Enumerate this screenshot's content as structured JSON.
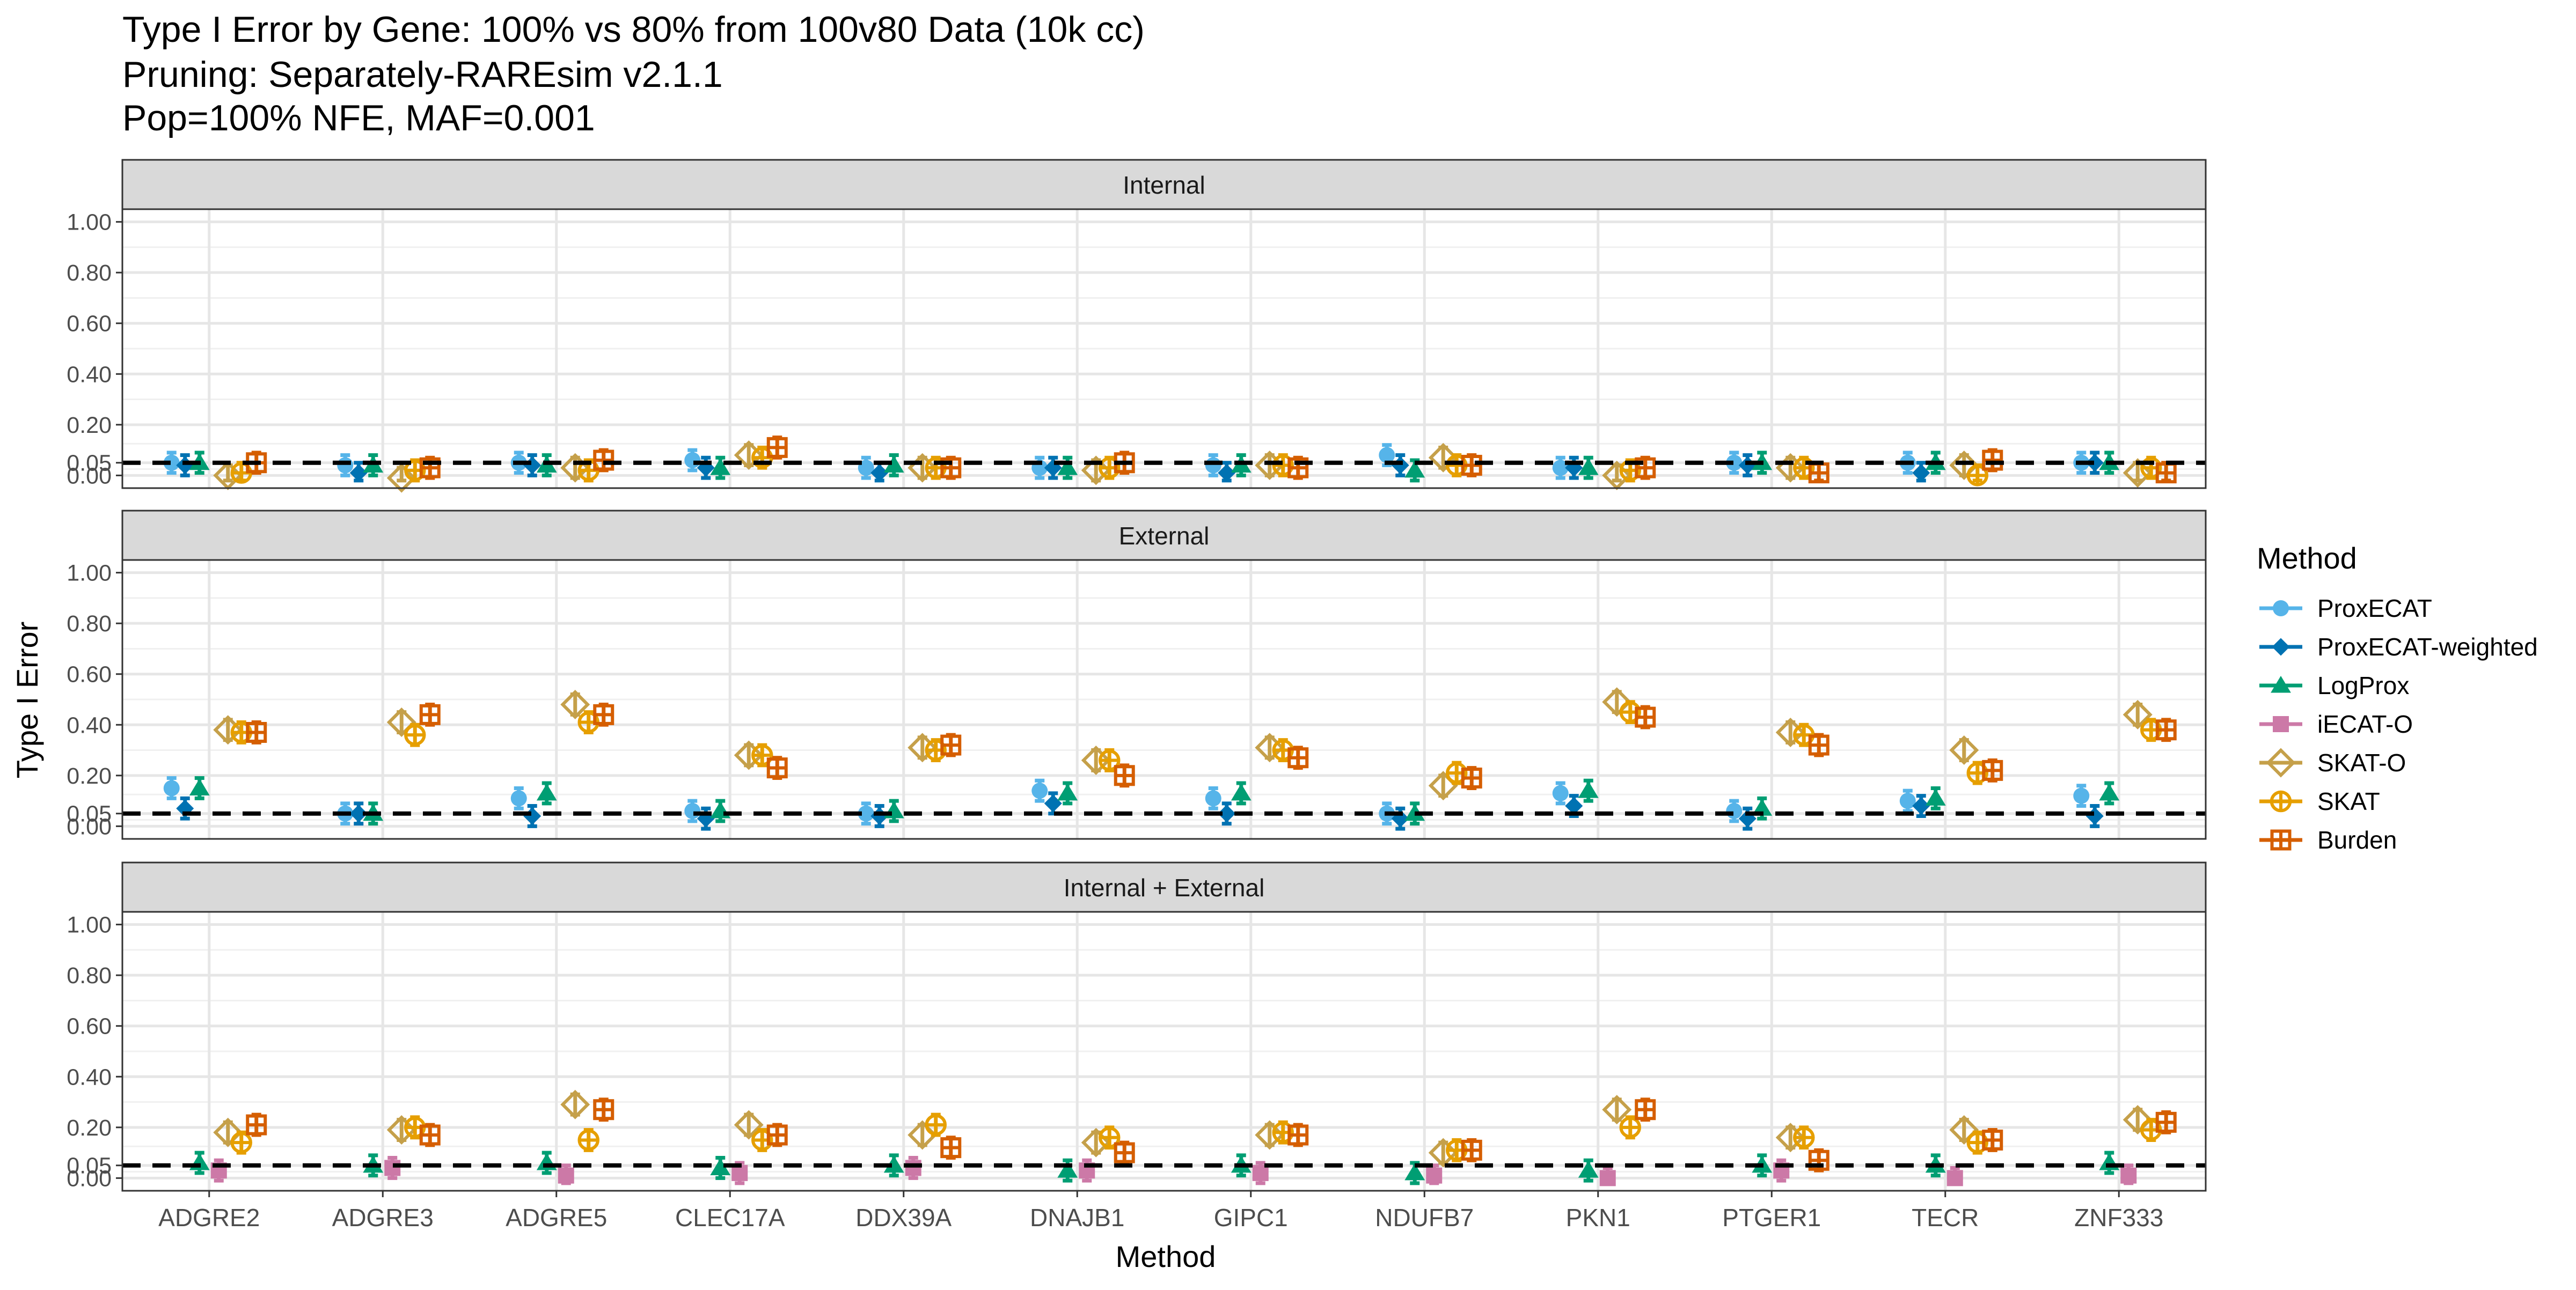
{
  "chart_data": {
    "type": "scatter",
    "title_lines": [
      "Type I Error by Gene: 100% vs 80% from 100v80 Data (10k cc)",
      "Pruning: Separately-RAREsim v2.1.1",
      "Pop=100% NFE, MAF=0.001"
    ],
    "xlabel": "Method",
    "ylabel": "Type I Error",
    "ylim": [
      -0.05,
      1.05
    ],
    "yticks": [
      0.0,
      0.05,
      0.2,
      0.4,
      0.6,
      0.8,
      1.0
    ],
    "ytick_labels": [
      "0.00",
      "0.05",
      "0.20",
      "0.40",
      "0.60",
      "0.80",
      "1.00"
    ],
    "reference_line": 0.05,
    "categories": [
      "ADGRE2",
      "ADGRE3",
      "ADGRE5",
      "CLEC17A",
      "DDX39A",
      "DNAJB1",
      "GIPC1",
      "NDUFB7",
      "PKN1",
      "PTGER1",
      "TECR",
      "ZNF333"
    ],
    "legend": {
      "title": "Method",
      "placement": "right",
      "entries": [
        {
          "name": "ProxECAT",
          "color": "#56B4E9",
          "shape": "circle"
        },
        {
          "name": "ProxECAT-weighted",
          "color": "#0072B2",
          "shape": "diamond"
        },
        {
          "name": "LogProx",
          "color": "#009E73",
          "shape": "triangle"
        },
        {
          "name": "iECAT-O",
          "color": "#CC79A7",
          "shape": "square"
        },
        {
          "name": "SKAT-O",
          "color": "#C5A04A",
          "shape": "diamond-open"
        },
        {
          "name": "SKAT",
          "color": "#E69F00",
          "shape": "circle-plus"
        },
        {
          "name": "Burden",
          "color": "#D55E00",
          "shape": "square-plus"
        }
      ]
    },
    "ci_halfwidth": 0.04,
    "panels": [
      {
        "label": "Internal",
        "series": [
          {
            "name": "ProxECAT",
            "values": [
              0.05,
              0.04,
              0.05,
              0.06,
              0.03,
              0.03,
              0.04,
              0.08,
              0.03,
              0.05,
              0.05,
              0.05
            ]
          },
          {
            "name": "ProxECAT-weighted",
            "values": [
              0.04,
              0.01,
              0.04,
              0.03,
              0.01,
              0.03,
              0.01,
              0.04,
              0.03,
              0.04,
              0.01,
              0.05
            ]
          },
          {
            "name": "LogProx",
            "values": [
              0.05,
              0.04,
              0.04,
              0.03,
              0.04,
              0.03,
              0.04,
              0.02,
              0.03,
              0.05,
              0.05,
              0.05
            ]
          },
          {
            "name": "SKAT-O",
            "values": [
              0.0,
              -0.01,
              0.03,
              0.08,
              0.03,
              0.02,
              0.04,
              0.07,
              0.0,
              0.03,
              0.04,
              0.01
            ]
          },
          {
            "name": "SKAT",
            "values": [
              0.01,
              0.02,
              0.02,
              0.07,
              0.03,
              0.03,
              0.04,
              0.04,
              0.02,
              0.03,
              0.0,
              0.03
            ]
          },
          {
            "name": "Burden",
            "values": [
              0.05,
              0.03,
              0.06,
              0.11,
              0.03,
              0.05,
              0.03,
              0.04,
              0.03,
              0.01,
              0.06,
              0.01
            ]
          }
        ]
      },
      {
        "label": "External",
        "series": [
          {
            "name": "ProxECAT",
            "values": [
              0.15,
              0.05,
              0.11,
              0.06,
              0.05,
              0.14,
              0.11,
              0.05,
              0.13,
              0.06,
              0.1,
              0.12
            ]
          },
          {
            "name": "ProxECAT-weighted",
            "values": [
              0.07,
              0.05,
              0.04,
              0.03,
              0.04,
              0.09,
              0.05,
              0.03,
              0.08,
              0.03,
              0.08,
              0.04
            ]
          },
          {
            "name": "LogProx",
            "values": [
              0.15,
              0.05,
              0.13,
              0.06,
              0.06,
              0.13,
              0.13,
              0.05,
              0.14,
              0.07,
              0.11,
              0.13
            ]
          },
          {
            "name": "SKAT-O",
            "values": [
              0.38,
              0.41,
              0.48,
              0.28,
              0.31,
              0.26,
              0.31,
              0.16,
              0.49,
              0.37,
              0.3,
              0.44
            ]
          },
          {
            "name": "SKAT",
            "values": [
              0.37,
              0.36,
              0.41,
              0.28,
              0.3,
              0.26,
              0.3,
              0.21,
              0.45,
              0.36,
              0.21,
              0.38
            ]
          },
          {
            "name": "Burden",
            "values": [
              0.37,
              0.44,
              0.44,
              0.23,
              0.32,
              0.2,
              0.27,
              0.19,
              0.43,
              0.32,
              0.22,
              0.38
            ]
          }
        ]
      },
      {
        "label": "Internal + External",
        "series": [
          {
            "name": "LogProx",
            "values": [
              0.06,
              0.05,
              0.06,
              0.04,
              0.05,
              0.03,
              0.05,
              0.02,
              0.03,
              0.05,
              0.05,
              0.06
            ]
          },
          {
            "name": "iECAT-O",
            "values": [
              0.03,
              0.04,
              0.01,
              0.02,
              0.04,
              0.03,
              0.02,
              0.01,
              0.0,
              0.03,
              0.0,
              0.01
            ]
          },
          {
            "name": "SKAT-O",
            "values": [
              0.18,
              0.19,
              0.29,
              0.21,
              0.17,
              0.14,
              0.17,
              0.1,
              0.27,
              0.16,
              0.19,
              0.23
            ]
          },
          {
            "name": "SKAT",
            "values": [
              0.14,
              0.2,
              0.15,
              0.15,
              0.21,
              0.16,
              0.18,
              0.11,
              0.2,
              0.16,
              0.14,
              0.19
            ]
          },
          {
            "name": "Burden",
            "values": [
              0.21,
              0.17,
              0.27,
              0.17,
              0.12,
              0.1,
              0.17,
              0.11,
              0.27,
              0.07,
              0.15,
              0.22
            ]
          }
        ]
      }
    ]
  }
}
